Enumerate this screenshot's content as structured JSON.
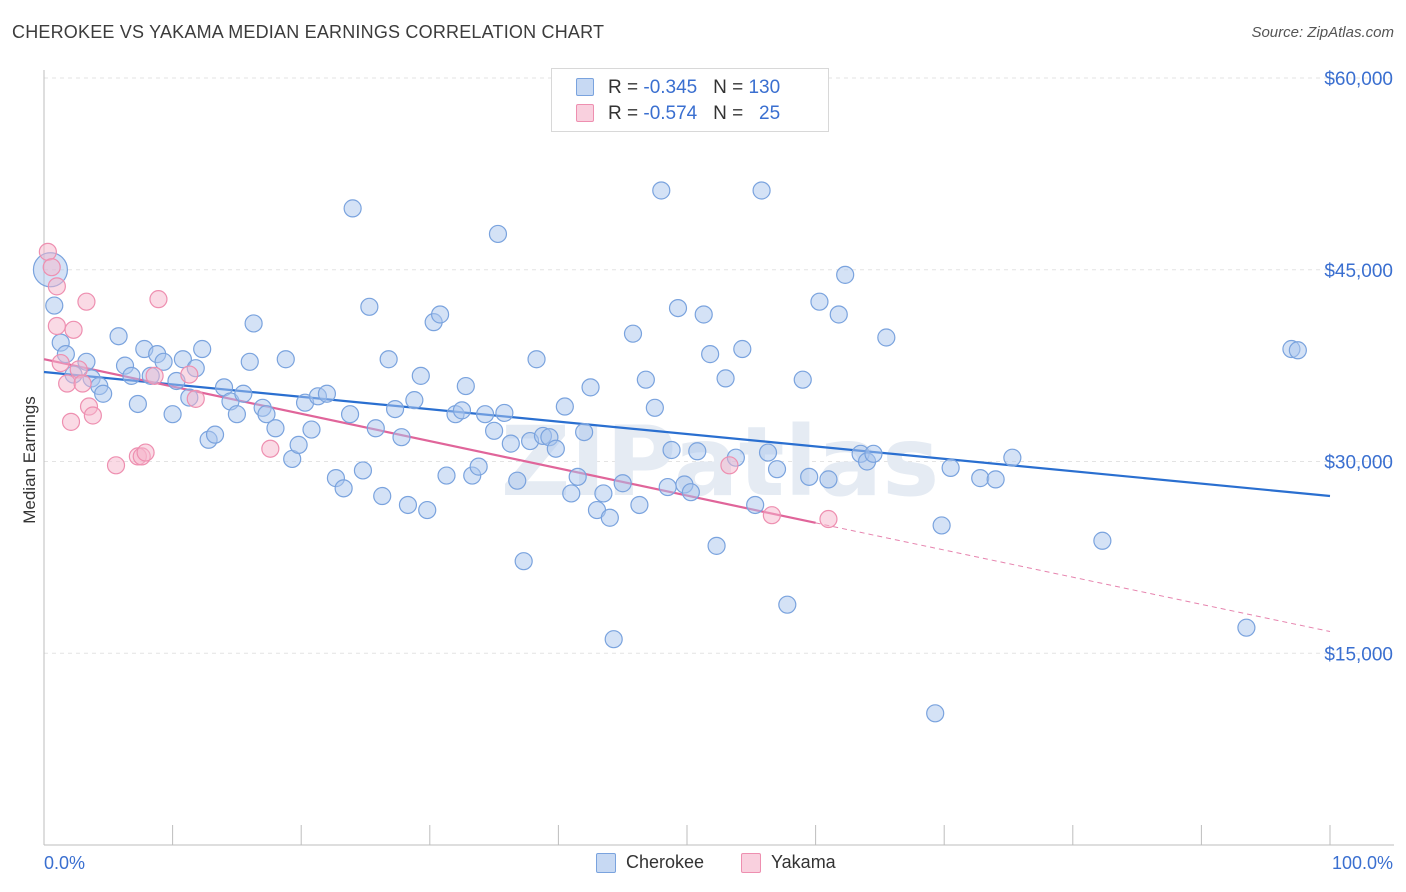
{
  "title": "CHEROKEE VS YAKAMA MEDIAN EARNINGS CORRELATION CHART",
  "source": "Source: ZipAtlas.com",
  "legend": {
    "rows": [
      {
        "r_label": "R = ",
        "r_value": "-0.345",
        "n_label": "N = ",
        "n_value": "130"
      },
      {
        "r_label": "R = ",
        "r_value": "-0.574",
        "n_label": "N = ",
        "n_value": "25"
      }
    ]
  },
  "bottom_legend": [
    "Cherokee",
    "Yakama"
  ],
  "watermark": "ZIPatlas",
  "colors": {
    "cherokee_fill": "#a9c6ee",
    "cherokee_stroke": "#7aa3de",
    "cherokee_line": "#2a6fd0",
    "yakama_fill": "#f6b6cb",
    "yakama_stroke": "#ee8fb0",
    "yakama_line": "#e0659a",
    "axis_text": "#3a6fd0",
    "grid": "#e3e3e3"
  },
  "chart_data": {
    "type": "scatter",
    "title": "CHEROKEE VS YAKAMA MEDIAN EARNINGS CORRELATION CHART",
    "xlabel": "",
    "ylabel": "Median Earnings",
    "xlim": [
      0,
      100
    ],
    "ylim": [
      0,
      62000
    ],
    "x_tick_labels": [
      "0.0%",
      "100.0%"
    ],
    "y_ticks": [
      15000,
      30000,
      45000,
      60000
    ],
    "y_tick_labels": [
      "$15,000",
      "$30,000",
      "$45,000",
      "$60,000"
    ],
    "grid": true,
    "legend_position": "top-center",
    "series": [
      {
        "name": "Cherokee",
        "r": -0.345,
        "n": 130,
        "trend": {
          "x": [
            0,
            100
          ],
          "y": [
            37000,
            27300
          ]
        },
        "points": [
          [
            0.5,
            45000
          ],
          [
            0.8,
            42200
          ],
          [
            1.3,
            39300
          ],
          [
            1.7,
            38400
          ],
          [
            2.3,
            36800
          ],
          [
            3.3,
            37800
          ],
          [
            3.7,
            36500
          ],
          [
            4.3,
            35900
          ],
          [
            4.6,
            35300
          ],
          [
            5.8,
            39800
          ],
          [
            6.3,
            37500
          ],
          [
            6.8,
            36700
          ],
          [
            7.3,
            34500
          ],
          [
            7.8,
            38800
          ],
          [
            8.3,
            36700
          ],
          [
            8.8,
            38400
          ],
          [
            9.3,
            37800
          ],
          [
            10.0,
            33700
          ],
          [
            10.3,
            36300
          ],
          [
            10.8,
            38000
          ],
          [
            11.3,
            35000
          ],
          [
            11.8,
            37300
          ],
          [
            12.3,
            38800
          ],
          [
            12.8,
            31700
          ],
          [
            13.3,
            32100
          ],
          [
            14.0,
            35800
          ],
          [
            14.5,
            34700
          ],
          [
            15.0,
            33700
          ],
          [
            15.5,
            35300
          ],
          [
            16.0,
            37800
          ],
          [
            16.3,
            40800
          ],
          [
            17.0,
            34200
          ],
          [
            17.3,
            33700
          ],
          [
            18.0,
            32600
          ],
          [
            18.8,
            38000
          ],
          [
            19.3,
            30200
          ],
          [
            19.8,
            31300
          ],
          [
            20.3,
            34600
          ],
          [
            20.8,
            32500
          ],
          [
            21.3,
            35100
          ],
          [
            22.0,
            35300
          ],
          [
            22.7,
            28700
          ],
          [
            23.3,
            27900
          ],
          [
            23.8,
            33700
          ],
          [
            24.0,
            49800
          ],
          [
            24.8,
            29300
          ],
          [
            25.3,
            42100
          ],
          [
            25.8,
            32600
          ],
          [
            26.3,
            27300
          ],
          [
            26.8,
            38000
          ],
          [
            27.3,
            34100
          ],
          [
            27.8,
            31900
          ],
          [
            28.3,
            26600
          ],
          [
            28.8,
            34800
          ],
          [
            29.3,
            36700
          ],
          [
            29.8,
            26200
          ],
          [
            30.3,
            40900
          ],
          [
            30.8,
            41500
          ],
          [
            31.3,
            28900
          ],
          [
            32.0,
            33700
          ],
          [
            32.5,
            34000
          ],
          [
            32.8,
            35900
          ],
          [
            33.3,
            28900
          ],
          [
            33.8,
            29600
          ],
          [
            34.3,
            33700
          ],
          [
            35.0,
            32400
          ],
          [
            35.3,
            47800
          ],
          [
            35.8,
            33800
          ],
          [
            36.3,
            31400
          ],
          [
            36.8,
            28500
          ],
          [
            37.3,
            22200
          ],
          [
            37.8,
            31600
          ],
          [
            38.3,
            38000
          ],
          [
            38.8,
            32000
          ],
          [
            39.3,
            31900
          ],
          [
            39.8,
            31000
          ],
          [
            40.5,
            34300
          ],
          [
            41.0,
            27500
          ],
          [
            41.5,
            28800
          ],
          [
            42.0,
            32300
          ],
          [
            42.5,
            35800
          ],
          [
            43.0,
            26200
          ],
          [
            43.5,
            27500
          ],
          [
            44.0,
            25600
          ],
          [
            44.3,
            16100
          ],
          [
            45.0,
            28300
          ],
          [
            45.8,
            40000
          ],
          [
            46.3,
            26600
          ],
          [
            46.8,
            36400
          ],
          [
            47.5,
            34200
          ],
          [
            48.0,
            51200
          ],
          [
            48.5,
            28000
          ],
          [
            48.8,
            30900
          ],
          [
            49.3,
            42000
          ],
          [
            49.8,
            28200
          ],
          [
            50.3,
            27600
          ],
          [
            50.8,
            30800
          ],
          [
            51.3,
            41500
          ],
          [
            51.8,
            38400
          ],
          [
            52.3,
            23400
          ],
          [
            53.0,
            36500
          ],
          [
            53.8,
            30300
          ],
          [
            54.3,
            38800
          ],
          [
            55.3,
            26600
          ],
          [
            55.8,
            51200
          ],
          [
            56.3,
            30700
          ],
          [
            57.0,
            29400
          ],
          [
            57.8,
            18800
          ],
          [
            59.0,
            36400
          ],
          [
            59.5,
            28800
          ],
          [
            60.3,
            42500
          ],
          [
            61.0,
            28600
          ],
          [
            61.8,
            41500
          ],
          [
            62.3,
            44600
          ],
          [
            63.5,
            30600
          ],
          [
            64.0,
            30000
          ],
          [
            64.5,
            30600
          ],
          [
            65.5,
            39700
          ],
          [
            69.3,
            10300
          ],
          [
            69.8,
            25000
          ],
          [
            70.5,
            29500
          ],
          [
            72.8,
            28700
          ],
          [
            74.0,
            28600
          ],
          [
            75.3,
            30300
          ],
          [
            82.3,
            23800
          ],
          [
            93.5,
            17000
          ],
          [
            97.0,
            38800
          ],
          [
            97.5,
            38700
          ]
        ]
      },
      {
        "name": "Yakama",
        "r": -0.574,
        "n": 25,
        "trend": {
          "x": [
            0,
            60
          ],
          "y": [
            38000,
            25200
          ]
        },
        "trend_extension": {
          "x": [
            60,
            100
          ],
          "y": [
            25200,
            16700
          ]
        },
        "points": [
          [
            0.3,
            46400
          ],
          [
            0.6,
            45200
          ],
          [
            1.0,
            43700
          ],
          [
            1.0,
            40600
          ],
          [
            1.3,
            37700
          ],
          [
            1.8,
            36100
          ],
          [
            2.1,
            33100
          ],
          [
            2.3,
            40300
          ],
          [
            2.7,
            37200
          ],
          [
            3.0,
            36100
          ],
          [
            3.3,
            42500
          ],
          [
            3.5,
            34300
          ],
          [
            3.8,
            33600
          ],
          [
            5.6,
            29700
          ],
          [
            7.3,
            30400
          ],
          [
            7.6,
            30400
          ],
          [
            7.9,
            30700
          ],
          [
            8.6,
            36700
          ],
          [
            8.9,
            42700
          ],
          [
            11.3,
            36800
          ],
          [
            11.8,
            34900
          ],
          [
            17.6,
            31000
          ],
          [
            53.3,
            29700
          ],
          [
            56.6,
            25800
          ],
          [
            61.0,
            25500
          ]
        ]
      }
    ]
  }
}
